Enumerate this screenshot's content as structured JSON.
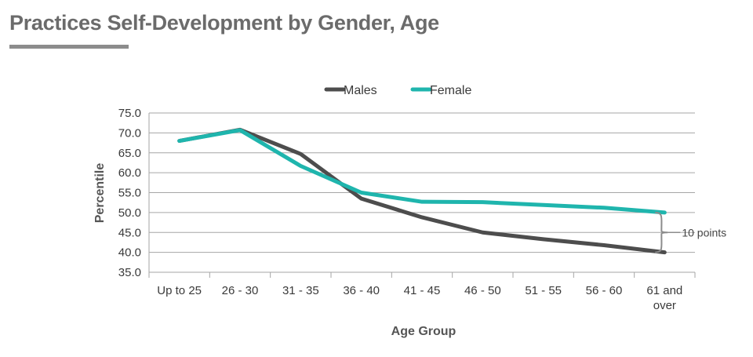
{
  "title": "Practices Self-Development by Gender, Age",
  "colors": {
    "title": "#6b6b6b",
    "underline": "#8c8c8c",
    "grid": "#a6a6a6",
    "males": "#4d4d4d",
    "female": "#1fb5ad",
    "bracket": "#8c8c8c"
  },
  "chart_data": {
    "type": "line",
    "categories": [
      "Up to 25",
      "26 - 30",
      "31 - 35",
      "36 - 40",
      "41 - 45",
      "46 - 50",
      "51 - 55",
      "56 - 60",
      "61 and over"
    ],
    "series": [
      {
        "name": "Males",
        "values": [
          68.0,
          70.8,
          64.7,
          53.5,
          48.8,
          45.0,
          43.3,
          41.8,
          40.0
        ]
      },
      {
        "name": "Female",
        "values": [
          68.0,
          70.7,
          61.7,
          55.0,
          52.7,
          52.6,
          51.9,
          51.2,
          50.0
        ]
      }
    ],
    "xlabel": "Age Group",
    "ylabel": "Percentile",
    "ylim": [
      35,
      75
    ],
    "yticks": [
      75.0,
      70.0,
      65.0,
      60.0,
      55.0,
      50.0,
      45.0,
      40.0,
      35.0
    ],
    "grid": true,
    "legend_position": "top",
    "annotation": "10 points"
  }
}
